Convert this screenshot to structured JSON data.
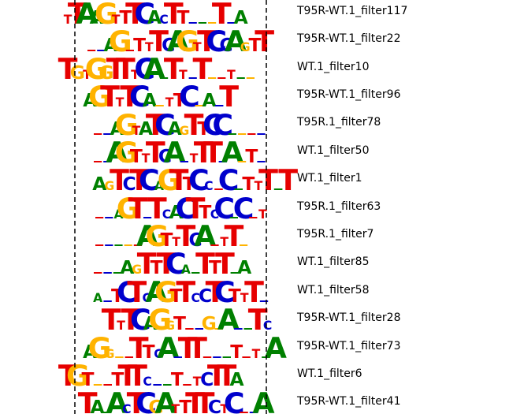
{
  "colors": {
    "A": "#008000",
    "C": "#0000cc",
    "G": "#ffb300",
    "T": "#e60000",
    "divider": "#000000"
  },
  "rows": [
    {
      "label": "T95R-WT.1_filter117",
      "motif": "TTAAGTTTCACTT...T.A"
    },
    {
      "label": "T95R-WT.1_filter22",
      "motif": "..AG.TTTCAGTTCCAGTT"
    },
    {
      "label": "WT.1_filter10",
      "motif": "TGTGGTTTCA.TT.T..T.."
    },
    {
      "label": "T95R-WT.1_filter96",
      "motif": "AGTTTCA.TTC.A.T"
    },
    {
      "label": "T95R.1_filter78",
      "motif": "..AGTATCAGTTCC...."
    },
    {
      "label": "WT.1_filter50",
      "motif": "..AGTTTCA.TTT.A.T."
    },
    {
      "label": "WT.1_filter1",
      "motif": "AGTCTCAGTTCC.C.TTT.T"
    },
    {
      "label": "T95R.1_filter63",
      "motif": "..AGT.TCACTTCC.C.T"
    },
    {
      "label": "T95R.1_filter7",
      "motif": ".....AGTTTCA.TT."
    },
    {
      "label": "WT.1_filter85",
      "motif": "...AGTTTCA.TTT.A"
    },
    {
      "label": "WT.1_filter58",
      "motif": "A.TCTCAGTTCCTCTTT."
    },
    {
      "label": "T95R-WT.1_filter28",
      "motif": "TTTCAGGT..G.A..TC"
    },
    {
      "label": "T95R-WT.1_filter73",
      "motif": "AGG..TTCA.TT...T.T.A"
    },
    {
      "label": "WT.1_filter6",
      "motif": "TGT..TTTC..T.TCTTA"
    },
    {
      "label": "T95R-WT.1_filter41",
      "motif": "TA.ACTCGATTTTCTC..A"
    }
  ]
}
